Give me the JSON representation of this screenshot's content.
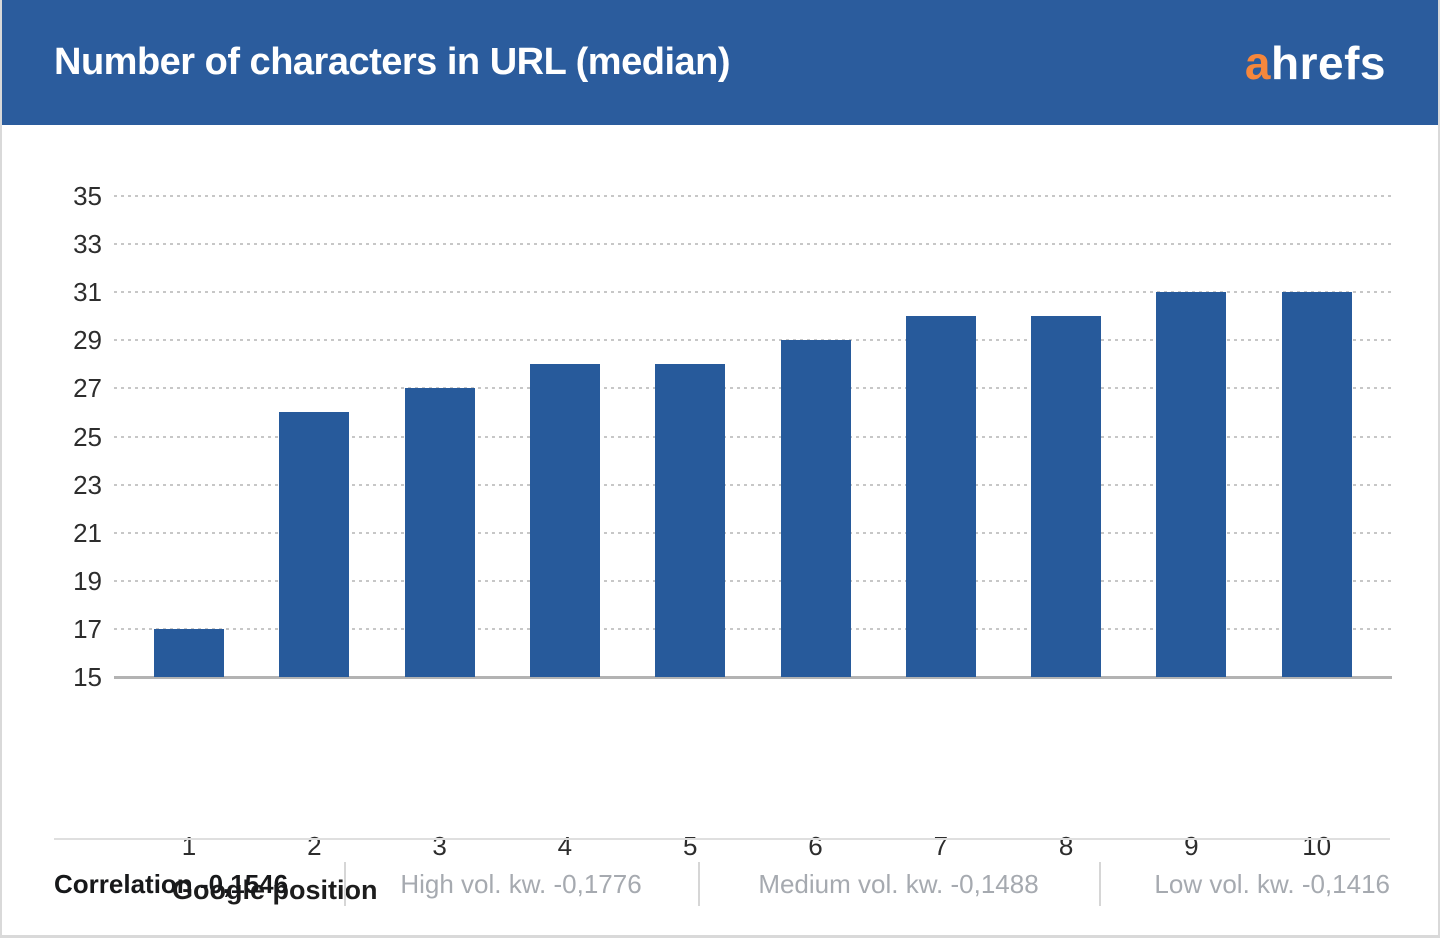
{
  "header": {
    "title": "Number of characters in URL (median)",
    "logo_prefix": "a",
    "logo_suffix": "hrefs"
  },
  "chart_data": {
    "type": "bar",
    "title": "Number of characters in URL (median)",
    "categories": [
      "1",
      "2",
      "3",
      "4",
      "5",
      "6",
      "7",
      "8",
      "9",
      "10"
    ],
    "values": [
      17,
      26,
      27,
      28,
      28,
      29,
      30,
      30,
      31,
      31
    ],
    "xlabel": "Google position",
    "ylabel": "",
    "ylim": [
      15,
      35
    ],
    "yticks": [
      15,
      17,
      19,
      21,
      23,
      25,
      27,
      29,
      31,
      33,
      35
    ],
    "grid": "horizontal-dotted",
    "legend": "none",
    "bar_color": "#275a9b"
  },
  "footer": {
    "correlation": "Correlation -0,1546",
    "segments": [
      {
        "label": "High vol. kw. -0,1776"
      },
      {
        "label": "Medium vol. kw. -0,1488"
      },
      {
        "label": "Low vol. kw. -0,1416"
      }
    ]
  },
  "colors": {
    "header_background": "#2b5c9d",
    "bar": "#275a9b",
    "logo_orange": "#f6873c",
    "logo_white": "#ffffff",
    "gridline": "#c7c7c7",
    "axis_line": "#b3b3b3",
    "axis_text": "#2d2d2d",
    "muted_text": "#a6aab0",
    "divider": "#d9d9d9"
  }
}
